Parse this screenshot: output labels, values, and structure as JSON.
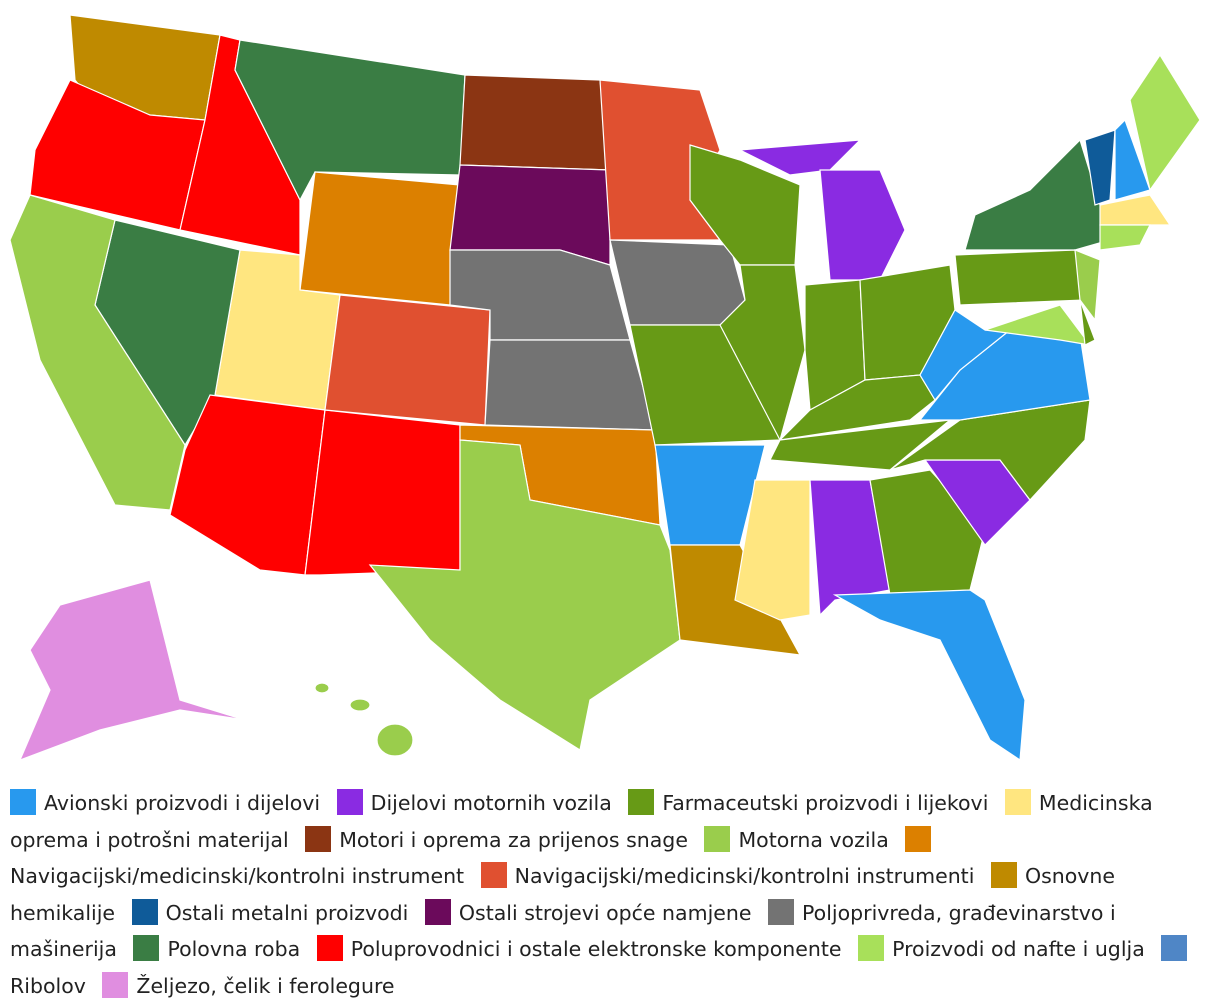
{
  "legend": [
    {
      "name": "Avionski proizvodi i dijelovi",
      "color": "#2899ee"
    },
    {
      "name": "Dijelovi motornih vozila",
      "color": "#8a2be2"
    },
    {
      "name": "Farmaceutski proizvodi i lijekovi",
      "color": "#679a16"
    },
    {
      "name": "Medicinska oprema i potrošni materijal",
      "color": "#ffe680"
    },
    {
      "name": "Motori i oprema za prijenos snage",
      "color": "#8b3513"
    },
    {
      "name": "Motorna vozila",
      "color": "#9acd4c"
    },
    {
      "name": "Navigacijski/medicinski/kontrolni instrument",
      "color": "#dc8000"
    },
    {
      "name": "Navigacijski/medicinski/kontrolni instrumenti",
      "color": "#e05030"
    },
    {
      "name": "Osnovne hemikalije",
      "color": "#bf8a00"
    },
    {
      "name": "Ostali metalni proizvodi",
      "color": "#0f5b99"
    },
    {
      "name": "Ostali strojevi opće namjene",
      "color": "#6b0a5b"
    },
    {
      "name": "Poljoprivreda, građevinarstvo i mašinerija",
      "color": "#737373"
    },
    {
      "name": "Polovna roba",
      "color": "#3a7d44"
    },
    {
      "name": "Poluprovodnici i ostale elektronske komponente",
      "color": "#ff0000"
    },
    {
      "name": "Proizvodi od nafte i uglja",
      "color": "#a8e05a"
    },
    {
      "name": "Ribolov",
      "color": "#4f86c6"
    },
    {
      "name": "Željezo, čelik i ferolegure",
      "color": "#e08ee0"
    }
  ]
}
